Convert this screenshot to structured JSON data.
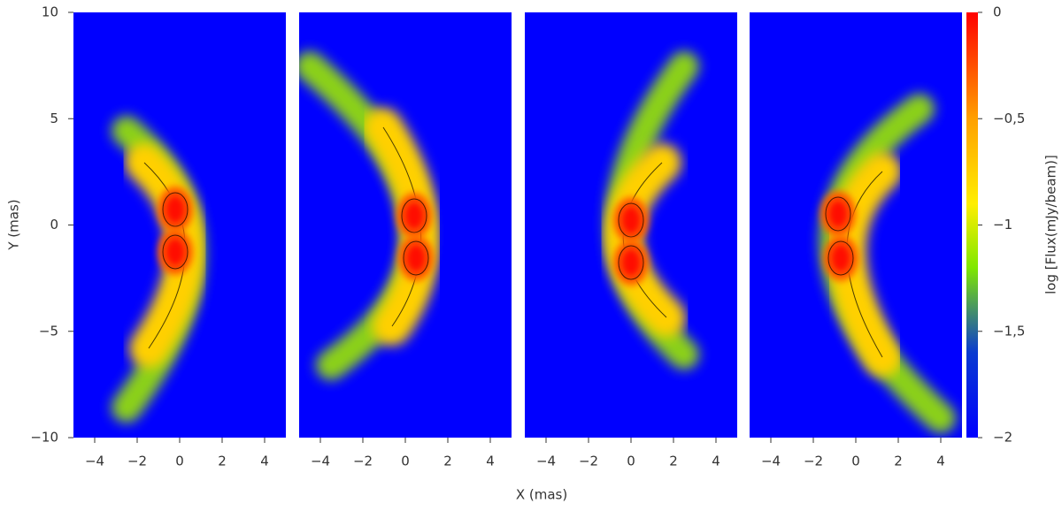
{
  "chart_data": {
    "type": "heatmap",
    "xlabel": "X (mas)",
    "ylabel": "Y (mas)",
    "colorbar_label": "log [Flux(mJy/beam)]",
    "xlim": [
      -5,
      5
    ],
    "ylim": [
      -10,
      10
    ],
    "xticks": [
      {
        "value": -4,
        "label": "−4"
      },
      {
        "value": -2,
        "label": "−2"
      },
      0,
      2,
      4
    ],
    "yticks": [
      {
        "value": -10,
        "label": "−10"
      },
      {
        "value": -5,
        "label": "−5"
      },
      0,
      5,
      10
    ],
    "clim": [
      -2,
      0
    ],
    "cticks": [
      {
        "value": -2,
        "label": "−2"
      },
      {
        "value": -1.5,
        "label": "−1,5"
      },
      {
        "value": -1,
        "label": "−1"
      },
      {
        "value": -0.5,
        "label": "−0,5"
      },
      0
    ]
  }
}
